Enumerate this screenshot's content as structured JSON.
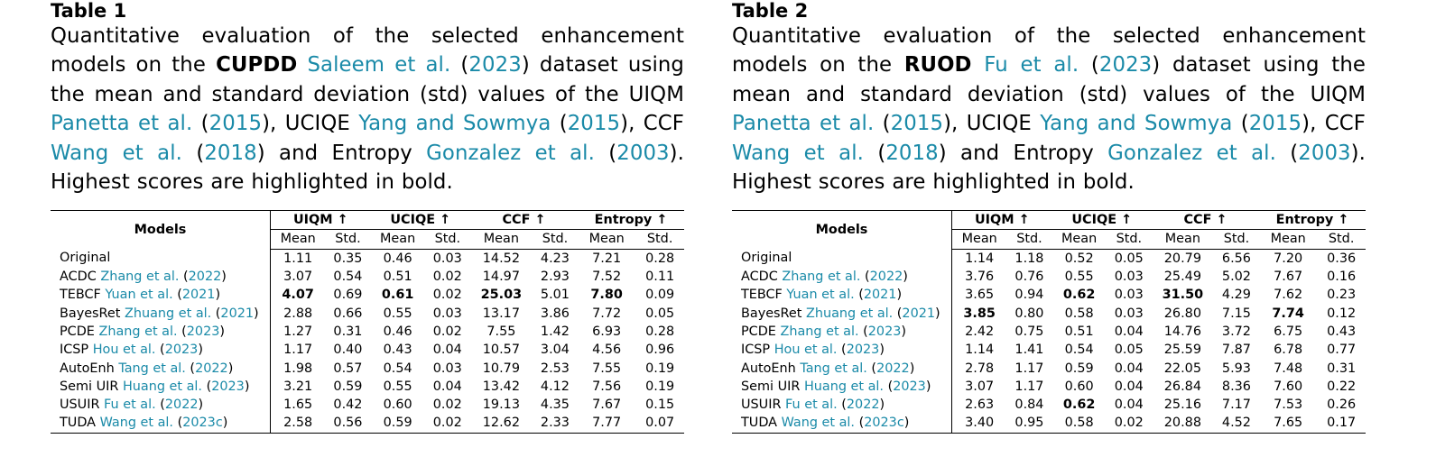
{
  "tables": [
    {
      "label": "Table 1",
      "caption": [
        {
          "t": "Quantitative evaluation of the selected enhancement models on the "
        },
        {
          "t": "CUPDD",
          "b": true
        },
        {
          "t": " "
        },
        {
          "t": "Saleem et al.",
          "c": true
        },
        {
          "t": " ("
        },
        {
          "t": "2023",
          "c": true
        },
        {
          "t": ") dataset using the mean and standard deviation (std) values of the UIQM "
        },
        {
          "t": "Panetta et al.",
          "c": true
        },
        {
          "t": " ("
        },
        {
          "t": "2015",
          "c": true
        },
        {
          "t": "), UCIQE "
        },
        {
          "t": "Yang and Sowmya",
          "c": true
        },
        {
          "t": " ("
        },
        {
          "t": "2015",
          "c": true
        },
        {
          "t": "), CCF "
        },
        {
          "t": "Wang et al.",
          "c": true
        },
        {
          "t": " ("
        },
        {
          "t": "2018",
          "c": true
        },
        {
          "t": ") and Entropy "
        },
        {
          "t": "Gonzalez et al.",
          "c": true
        },
        {
          "t": " ("
        },
        {
          "t": "2003",
          "c": true
        },
        {
          "t": "). Highest scores are highlighted in bold."
        }
      ],
      "header": {
        "models": "Models",
        "metrics": [
          "UIQM ↑",
          "UCIQE ↑",
          "CCF ↑",
          "Entropy ↑"
        ],
        "sub": [
          "Mean",
          "Std.",
          "Mean",
          "Std.",
          "Mean",
          "Std.",
          "Mean",
          "Std."
        ]
      },
      "rows": [
        {
          "name": "Original",
          "cite": "",
          "year": "",
          "values": [
            "1.11",
            "0.35",
            "0.46",
            "0.03",
            "14.52",
            "4.23",
            "7.21",
            "0.28"
          ],
          "bold": []
        },
        {
          "name": "ACDC",
          "cite": "Zhang et al.",
          "year": "2022",
          "values": [
            "3.07",
            "0.54",
            "0.51",
            "0.02",
            "14.97",
            "2.93",
            "7.52",
            "0.11"
          ],
          "bold": []
        },
        {
          "name": "TEBCF",
          "cite": "Yuan et al.",
          "year": "2021",
          "values": [
            "4.07",
            "0.69",
            "0.61",
            "0.02",
            "25.03",
            "5.01",
            "7.80",
            "0.09"
          ],
          "bold": [
            0,
            2,
            4,
            6
          ]
        },
        {
          "name": "BayesRet",
          "cite": "Zhuang et al.",
          "year": "2021",
          "values": [
            "2.88",
            "0.66",
            "0.55",
            "0.03",
            "13.17",
            "3.86",
            "7.72",
            "0.05"
          ],
          "bold": []
        },
        {
          "name": "PCDE",
          "cite": "Zhang et al.",
          "year": "2023",
          "values": [
            "1.27",
            "0.31",
            "0.46",
            "0.02",
            "7.55",
            "1.42",
            "6.93",
            "0.28"
          ],
          "bold": []
        },
        {
          "name": "ICSP",
          "cite": "Hou et al.",
          "year": "2023",
          "values": [
            "1.17",
            "0.40",
            "0.43",
            "0.04",
            "10.57",
            "3.04",
            "4.56",
            "0.96"
          ],
          "bold": []
        },
        {
          "name": "AutoEnh",
          "cite": "Tang et al.",
          "year": "2022",
          "values": [
            "1.98",
            "0.57",
            "0.54",
            "0.03",
            "10.79",
            "2.53",
            "7.55",
            "0.19"
          ],
          "bold": []
        },
        {
          "name": "Semi UIR",
          "cite": "Huang et al.",
          "year": "2023",
          "values": [
            "3.21",
            "0.59",
            "0.55",
            "0.04",
            "13.42",
            "4.12",
            "7.56",
            "0.19"
          ],
          "bold": []
        },
        {
          "name": "USUIR",
          "cite": "Fu et al.",
          "year": "2022",
          "values": [
            "1.65",
            "0.42",
            "0.60",
            "0.02",
            "19.13",
            "4.35",
            "7.67",
            "0.15"
          ],
          "bold": []
        },
        {
          "name": "TUDA",
          "cite": "Wang et al.",
          "year": "2023c",
          "values": [
            "2.58",
            "0.56",
            "0.59",
            "0.02",
            "12.62",
            "2.33",
            "7.77",
            "0.07"
          ],
          "bold": []
        }
      ]
    },
    {
      "label": "Table 2",
      "caption": [
        {
          "t": "Quantitative evaluation of the selected enhancement models on the "
        },
        {
          "t": "RUOD",
          "b": true
        },
        {
          "t": " "
        },
        {
          "t": "Fu et al.",
          "c": true
        },
        {
          "t": " ("
        },
        {
          "t": "2023",
          "c": true
        },
        {
          "t": ") dataset using the mean and standard deviation (std) values of the UIQM "
        },
        {
          "t": "Panetta et al.",
          "c": true
        },
        {
          "t": " ("
        },
        {
          "t": "2015",
          "c": true
        },
        {
          "t": "), UCIQE "
        },
        {
          "t": "Yang and Sowmya",
          "c": true
        },
        {
          "t": " ("
        },
        {
          "t": "2015",
          "c": true
        },
        {
          "t": "), CCF "
        },
        {
          "t": "Wang et al.",
          "c": true
        },
        {
          "t": " ("
        },
        {
          "t": "2018",
          "c": true
        },
        {
          "t": ") and Entropy "
        },
        {
          "t": "Gonzalez et al.",
          "c": true
        },
        {
          "t": " ("
        },
        {
          "t": "2003",
          "c": true
        },
        {
          "t": "). Highest scores are highlighted in bold."
        }
      ],
      "header": {
        "models": "Models",
        "metrics": [
          "UIQM ↑",
          "UCIQE ↑",
          "CCF ↑",
          "Entropy ↑"
        ],
        "sub": [
          "Mean",
          "Std.",
          "Mean",
          "Std.",
          "Mean",
          "Std.",
          "Mean",
          "Std."
        ]
      },
      "rows": [
        {
          "name": "Original",
          "cite": "",
          "year": "",
          "values": [
            "1.14",
            "1.18",
            "0.52",
            "0.05",
            "20.79",
            "6.56",
            "7.20",
            "0.36"
          ],
          "bold": []
        },
        {
          "name": "ACDC",
          "cite": "Zhang et al.",
          "year": "2022",
          "values": [
            "3.76",
            "0.76",
            "0.55",
            "0.03",
            "25.49",
            "5.02",
            "7.67",
            "0.16"
          ],
          "bold": []
        },
        {
          "name": "TEBCF",
          "cite": "Yuan et al.",
          "year": "2021",
          "values": [
            "3.65",
            "0.94",
            "0.62",
            "0.03",
            "31.50",
            "4.29",
            "7.62",
            "0.23"
          ],
          "bold": [
            2,
            4
          ]
        },
        {
          "name": "BayesRet",
          "cite": "Zhuang et al.",
          "year": "2021",
          "values": [
            "3.85",
            "0.80",
            "0.58",
            "0.03",
            "26.80",
            "7.15",
            "7.74",
            "0.12"
          ],
          "bold": [
            0,
            6
          ]
        },
        {
          "name": "PCDE",
          "cite": "Zhang et al.",
          "year": "2023",
          "values": [
            "2.42",
            "0.75",
            "0.51",
            "0.04",
            "14.76",
            "3.72",
            "6.75",
            "0.43"
          ],
          "bold": []
        },
        {
          "name": "ICSP",
          "cite": "Hou et al.",
          "year": "2023",
          "values": [
            "1.14",
            "1.41",
            "0.54",
            "0.05",
            "25.59",
            "7.87",
            "6.78",
            "0.77"
          ],
          "bold": []
        },
        {
          "name": "AutoEnh",
          "cite": "Tang et al.",
          "year": "2022",
          "values": [
            "2.78",
            "1.17",
            "0.59",
            "0.04",
            "22.05",
            "5.93",
            "7.48",
            "0.31"
          ],
          "bold": []
        },
        {
          "name": "Semi UIR",
          "cite": "Huang et al.",
          "year": "2023",
          "values": [
            "3.07",
            "1.17",
            "0.60",
            "0.04",
            "26.84",
            "8.36",
            "7.60",
            "0.22"
          ],
          "bold": []
        },
        {
          "name": "USUIR",
          "cite": "Fu et al.",
          "year": "2022",
          "values": [
            "2.63",
            "0.84",
            "0.62",
            "0.04",
            "25.16",
            "7.17",
            "7.53",
            "0.26"
          ],
          "bold": [
            2
          ]
        },
        {
          "name": "TUDA",
          "cite": "Wang et al.",
          "year": "2023c",
          "values": [
            "3.40",
            "0.95",
            "0.58",
            "0.02",
            "20.88",
            "4.52",
            "7.65",
            "0.17"
          ],
          "bold": []
        }
      ]
    }
  ],
  "colors": {
    "citation": "#1a8aa8",
    "text": "#000000",
    "background": "#ffffff"
  }
}
